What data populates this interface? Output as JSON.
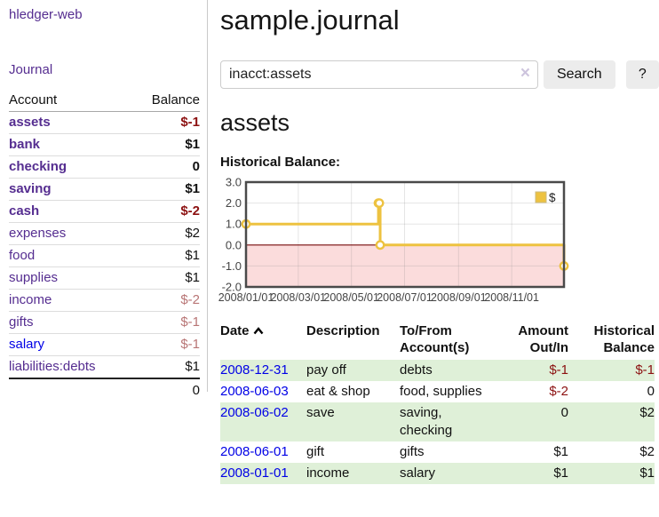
{
  "colors": {
    "accent_purple": "#552d90",
    "link_blue": "#0000e6",
    "negative_red": "#8c1111",
    "negative_muted_red": "#b87575",
    "row_stripe_green": "#dff0d8",
    "series_yellow": "#edc240"
  },
  "sidebar": {
    "brand": "hledger-web",
    "journal_link": "Journal",
    "accounts_table": {
      "headers": {
        "account": "Account",
        "balance": "Balance"
      },
      "rows": [
        {
          "account": "assets",
          "depth": 1,
          "bold": true,
          "balance": "$-1",
          "balance_class": "neg"
        },
        {
          "account": "bank",
          "depth": 2,
          "bold": true,
          "balance": "$1",
          "balance_class": "pos"
        },
        {
          "account": "checking",
          "depth": 3,
          "bold": true,
          "balance": "0",
          "balance_class": "pos"
        },
        {
          "account": "saving",
          "depth": 3,
          "bold": true,
          "balance": "$1",
          "balance_class": "pos"
        },
        {
          "account": "cash",
          "depth": 2,
          "bold": true,
          "balance": "$-2",
          "balance_class": "neg"
        },
        {
          "account": "expenses",
          "depth": 1,
          "bold": false,
          "balance": "$2",
          "balance_class": "pos"
        },
        {
          "account": "food",
          "depth": 2,
          "bold": false,
          "balance": "$1",
          "balance_class": "pos"
        },
        {
          "account": "supplies",
          "depth": 2,
          "bold": false,
          "balance": "$1",
          "balance_class": "pos"
        },
        {
          "account": "income",
          "depth": 1,
          "bold": false,
          "balance": "$-2",
          "balance_class": "neg-muted"
        },
        {
          "account": "gifts",
          "depth": 2,
          "bold": false,
          "balance": "$-1",
          "balance_class": "neg-muted"
        },
        {
          "account": "salary",
          "depth": 2,
          "bold": false,
          "balance": "$-1",
          "balance_class": "neg-muted",
          "link_color": "blue"
        },
        {
          "account": "liabilities:debts",
          "depth": 1,
          "bold": false,
          "balance": "$1",
          "balance_class": "pos"
        }
      ],
      "total": "0"
    }
  },
  "main": {
    "title": "sample.journal",
    "search": {
      "value": "inacct:assets",
      "clear_icon": "×",
      "button_label": "Search",
      "help_label": "?"
    },
    "account_heading": "assets",
    "chart_heading": "Historical Balance:"
  },
  "chart_data": {
    "type": "line",
    "step": true,
    "title": "Historical Balance:",
    "x_range": [
      "2008-01-01",
      "2008-12-31"
    ],
    "ylim": [
      -2,
      3
    ],
    "y_ticks": [
      "3.0",
      "2.0",
      "1.0",
      "0.0",
      "-1.0",
      "-2.0"
    ],
    "x_ticks": [
      "2008/01/01",
      "2008/03/01",
      "2008/05/01",
      "2008/07/01",
      "2008/09/01",
      "2008/11/01"
    ],
    "grid": true,
    "legend_position": "top-right",
    "series": [
      {
        "name": "$",
        "color": "#edc240",
        "points": [
          {
            "x": "2008-01-01",
            "y": 1
          },
          {
            "x": "2008-06-01",
            "y": 2
          },
          {
            "x": "2008-06-02",
            "y": 2
          },
          {
            "x": "2008-06-03",
            "y": 0
          },
          {
            "x": "2008-12-31",
            "y": -1
          }
        ]
      }
    ],
    "negative_region_color": "#fbdcdc",
    "zero_line_color": "#7a0c0c",
    "border_color": "#4a4a4a",
    "tick_label_color": "#444444"
  },
  "transactions": {
    "headers": [
      {
        "label": "Date",
        "sorted_ascending": true,
        "align": "left"
      },
      {
        "label": "Description",
        "align": "left"
      },
      {
        "label": "To/From Account(s)",
        "align": "left"
      },
      {
        "label": "Amount Out/In",
        "align": "right"
      },
      {
        "label": "Historical Balance",
        "align": "right"
      }
    ],
    "rows": [
      {
        "date": "2008-12-31",
        "description": "pay off",
        "tofrom": "debts",
        "amount": "$-1",
        "amount_class": "neg",
        "balance": "$-1",
        "balance_class": "neg"
      },
      {
        "date": "2008-06-03",
        "description": "eat & shop",
        "tofrom": "food, supplies",
        "amount": "$-2",
        "amount_class": "neg",
        "balance": "0",
        "balance_class": "pos"
      },
      {
        "date": "2008-06-02",
        "description": "save",
        "tofrom": "saving, checking",
        "amount": "0",
        "amount_class": "pos",
        "balance": "$2",
        "balance_class": "pos"
      },
      {
        "date": "2008-06-01",
        "description": "gift",
        "tofrom": "gifts",
        "amount": "$1",
        "amount_class": "pos",
        "balance": "$2",
        "balance_class": "pos"
      },
      {
        "date": "2008-01-01",
        "description": "income",
        "tofrom": "salary",
        "amount": "$1",
        "amount_class": "pos",
        "balance": "$1",
        "balance_class": "pos"
      }
    ]
  }
}
